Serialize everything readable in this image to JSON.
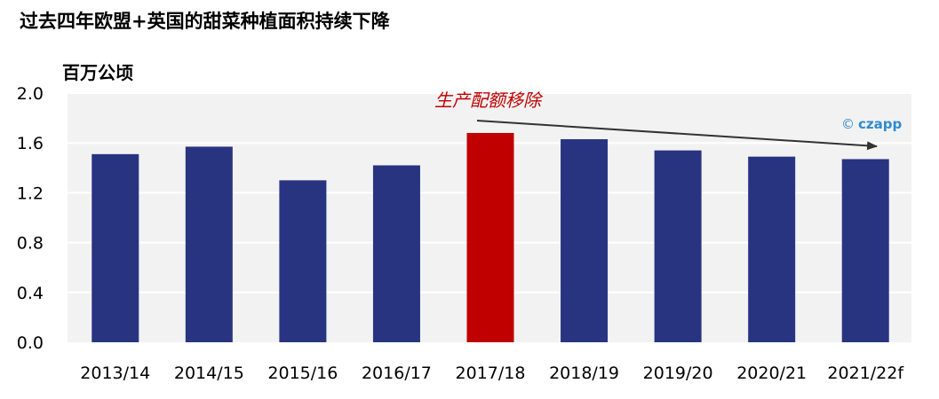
{
  "chart_data": {
    "type": "bar",
    "title": "过去四年欧盟+英国的甜菜种植面积持续下降",
    "ylabel": "百万公顷",
    "categories": [
      "2013/14",
      "2014/15",
      "2015/16",
      "2016/17",
      "2017/18",
      "2018/19",
      "2019/20",
      "2020/21",
      "2021/22f"
    ],
    "values": [
      1.51,
      1.57,
      1.3,
      1.42,
      1.68,
      1.63,
      1.54,
      1.49,
      1.47
    ],
    "highlight_index": 4,
    "ylim": [
      0,
      2.0
    ],
    "yticks": [
      "0.0",
      "0.4",
      "0.8",
      "1.2",
      "1.6",
      "2.0"
    ],
    "grid": true,
    "colors": {
      "bar": "#283480",
      "highlight": "#C00000",
      "plot_bg": "#F2F2F2",
      "annotation": "#C00000",
      "logo": "#2E8BD0"
    },
    "annotation": "生产配额移除",
    "watermark": "czapp"
  }
}
